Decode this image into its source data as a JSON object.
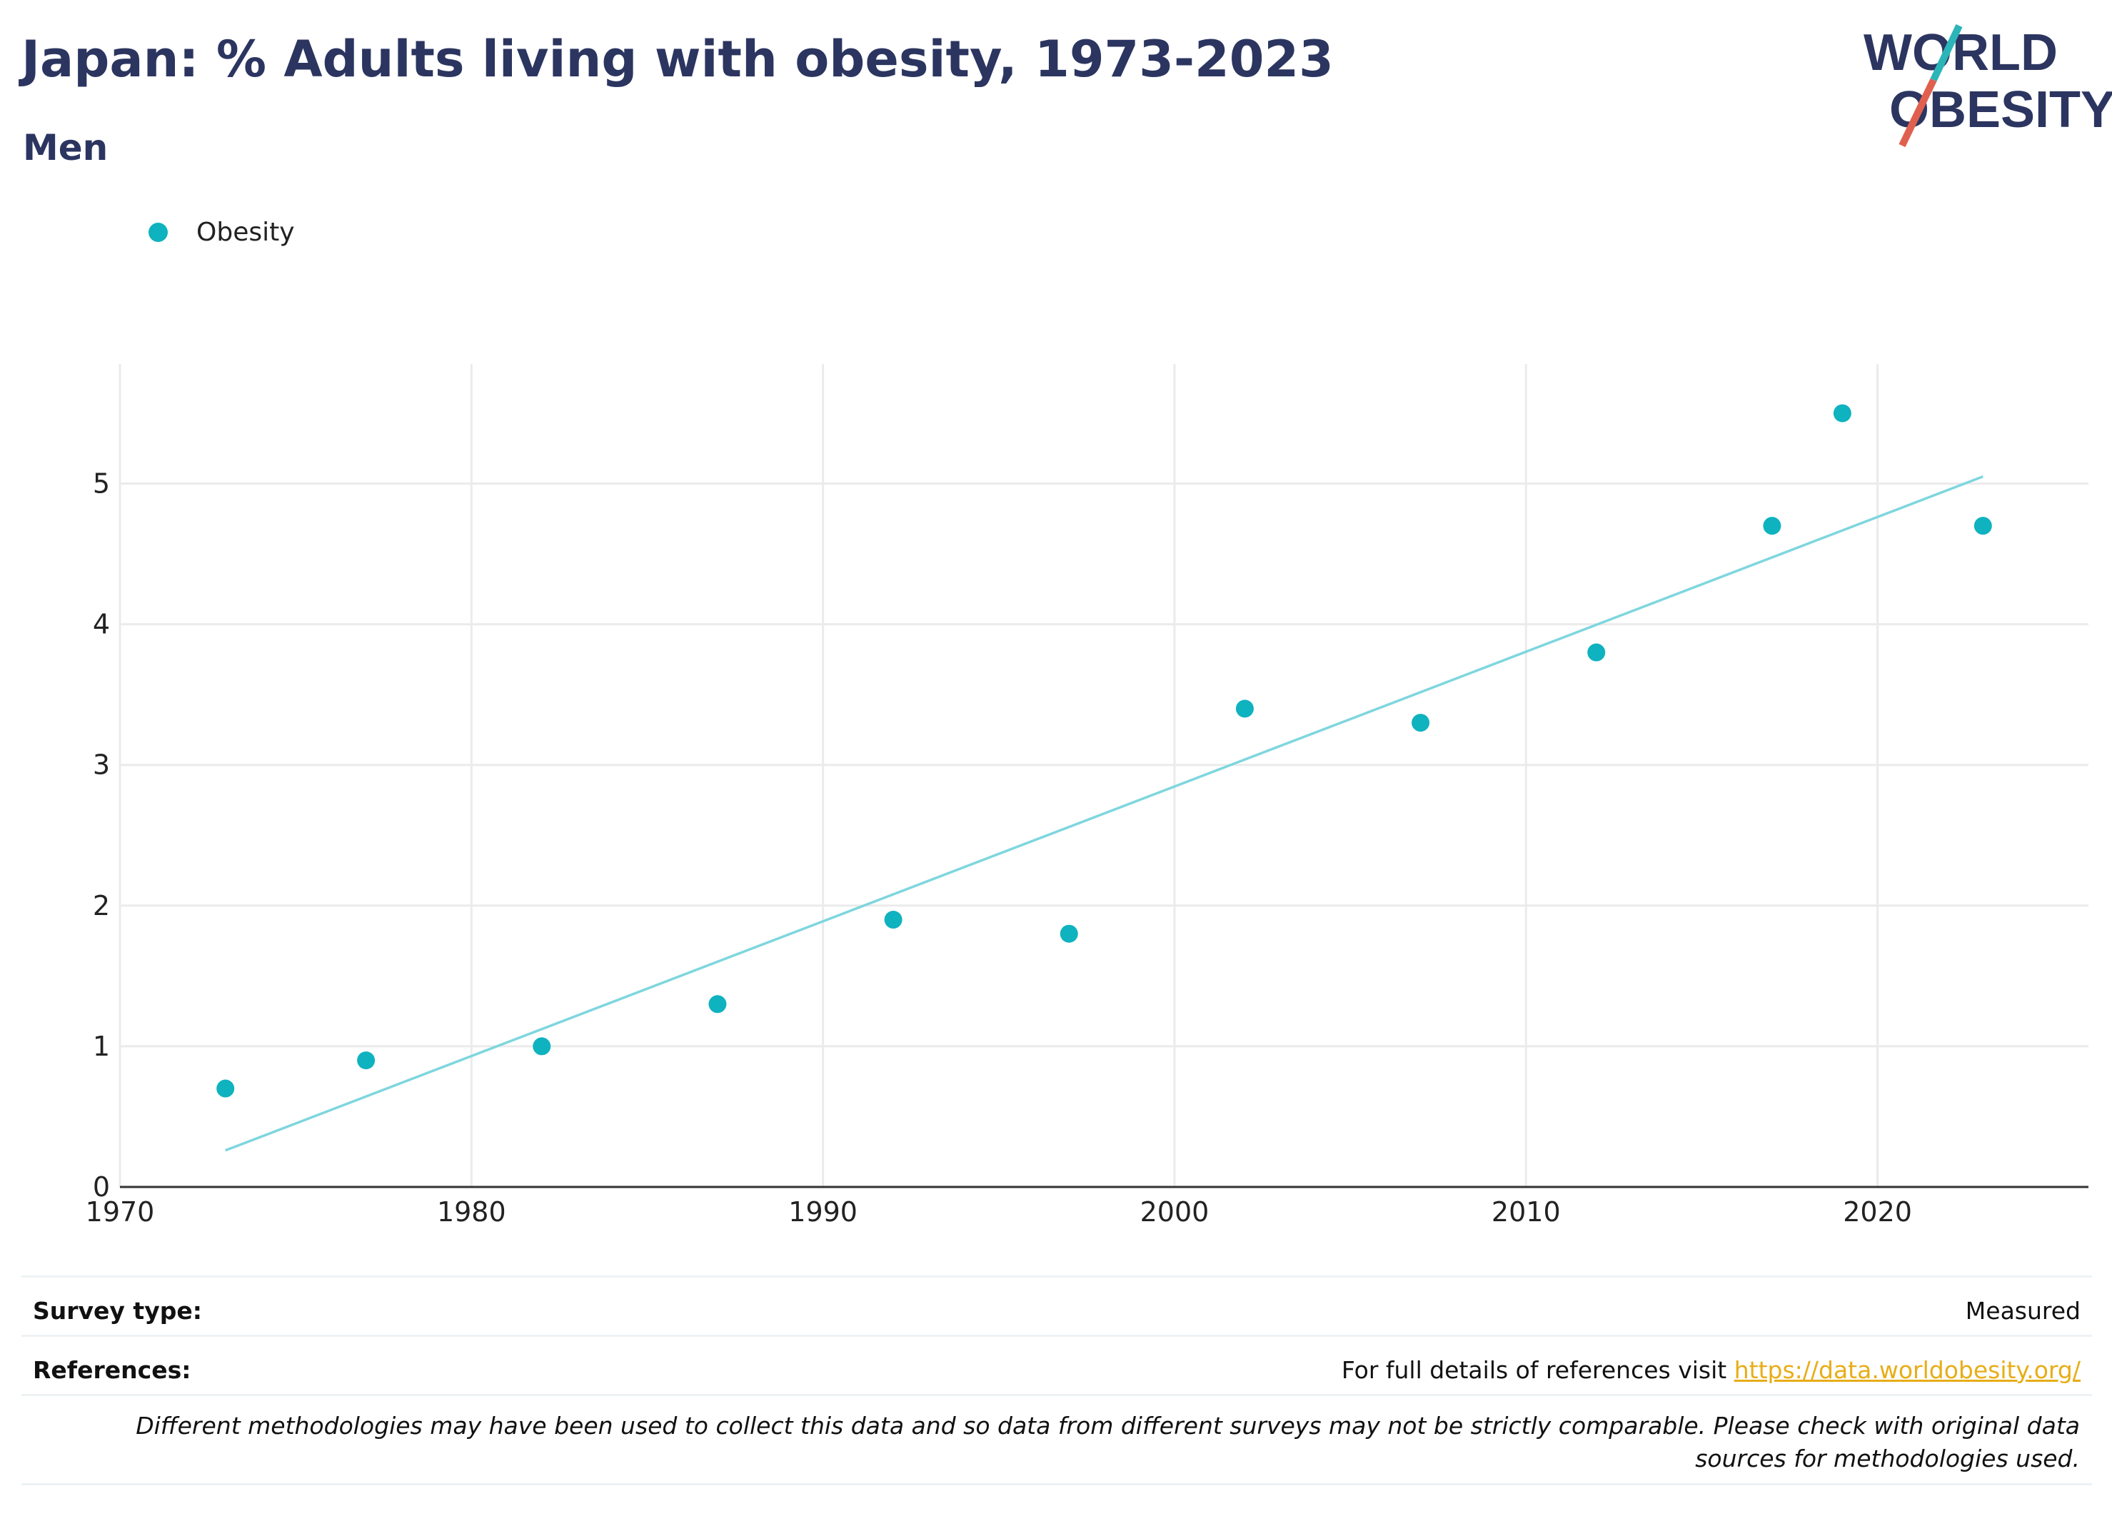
{
  "header": {
    "title": "Japan: % Adults living with obesity, 1973-2023",
    "subtitle": "Men"
  },
  "logo": {
    "line1": "WORLD",
    "line2": "OBESITY",
    "colors": {
      "text": "#2b3560",
      "slash_top": "#2bb5b8",
      "slash_bottom": "#e0604f"
    }
  },
  "legend": {
    "items": [
      {
        "label": "Obesity",
        "color": "#0fb2bf"
      }
    ]
  },
  "chart_data": {
    "type": "scatter",
    "xlim": [
      1970,
      2026
    ],
    "ylim": [
      0,
      5.85
    ],
    "x_ticks": [
      1970,
      1980,
      1990,
      2000,
      2010,
      2020
    ],
    "y_ticks": [
      0,
      1,
      2,
      3,
      4,
      5
    ],
    "grid": true,
    "legend_position": "top-left",
    "series": [
      {
        "name": "Obesity",
        "color": "#0fb2bf",
        "points": [
          {
            "x": 1973,
            "y": 0.7
          },
          {
            "x": 1977,
            "y": 0.9
          },
          {
            "x": 1982,
            "y": 1.0
          },
          {
            "x": 1987,
            "y": 1.3
          },
          {
            "x": 1992,
            "y": 1.9
          },
          {
            "x": 1997,
            "y": 1.8
          },
          {
            "x": 2002,
            "y": 3.4
          },
          {
            "x": 2007,
            "y": 3.3
          },
          {
            "x": 2012,
            "y": 3.8
          },
          {
            "x": 2017,
            "y": 4.7
          },
          {
            "x": 2019,
            "y": 5.5
          },
          {
            "x": 2023,
            "y": 4.7
          }
        ]
      }
    ],
    "trendline": {
      "color": "#7ed6de",
      "start": {
        "x": 1973,
        "y": 0.26
      },
      "end": {
        "x": 2023,
        "y": 5.05
      }
    }
  },
  "footer": {
    "survey_type_label": "Survey type:",
    "survey_type_value": "Measured",
    "references_label": "References:",
    "references_text": "For full details of references visit ",
    "references_link": "https://data.worldobesity.org/",
    "disclaimer": "Different methodologies may have been used to collect this data and so data from different surveys may not be strictly comparable. Please check with original data sources for methodologies used."
  }
}
